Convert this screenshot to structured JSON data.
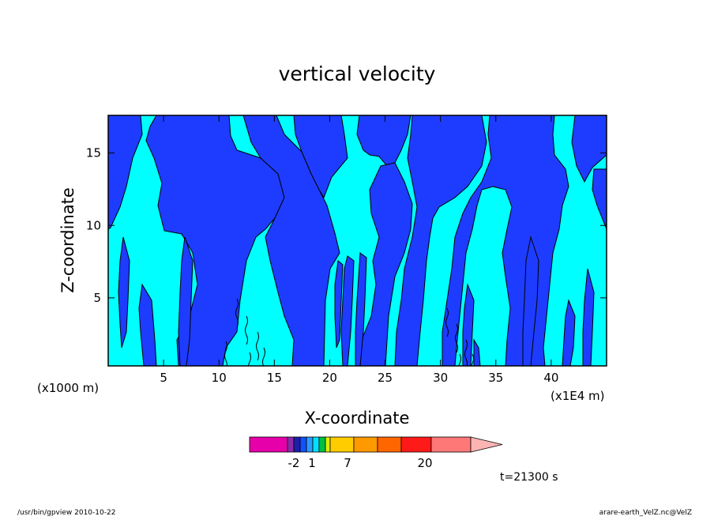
{
  "chart_data": {
    "type": "heatmap",
    "title": "vertical velocity",
    "xlabel": "X-coordinate",
    "ylabel": "Z-coordinate",
    "x_unit_label": "(x1E4 m)",
    "y_unit_label": "(x1000 m)",
    "x_ticks": [
      5,
      10,
      15,
      20,
      25,
      30,
      35,
      40
    ],
    "y_ticks": [
      5,
      10,
      15
    ],
    "xlim": [
      0,
      45
    ],
    "ylim": [
      0.3,
      17.6
    ],
    "grid": false,
    "colorbar": {
      "labels": [
        "-2",
        "1",
        "7",
        "20"
      ],
      "colors": [
        "#e600aa",
        "#8a2aa8",
        "#1e1ea8",
        "#1450ff",
        "#2a9cff",
        "#00e0ff",
        "#00c040",
        "#d8f000",
        "#ffcc00",
        "#ff9900",
        "#ff6600",
        "#ff1a1a",
        "#ff7878",
        "#ffb4b4"
      ]
    },
    "annotation": "t=21300 s",
    "field_colors": {
      "updraft": "#00ffff",
      "downdraft": "#1e3cff",
      "contour": "#000000"
    }
  },
  "footer": {
    "left": "/usr/bin/gpview   2010-10-22",
    "right": "arare-earth_VelZ.nc@VelZ"
  }
}
